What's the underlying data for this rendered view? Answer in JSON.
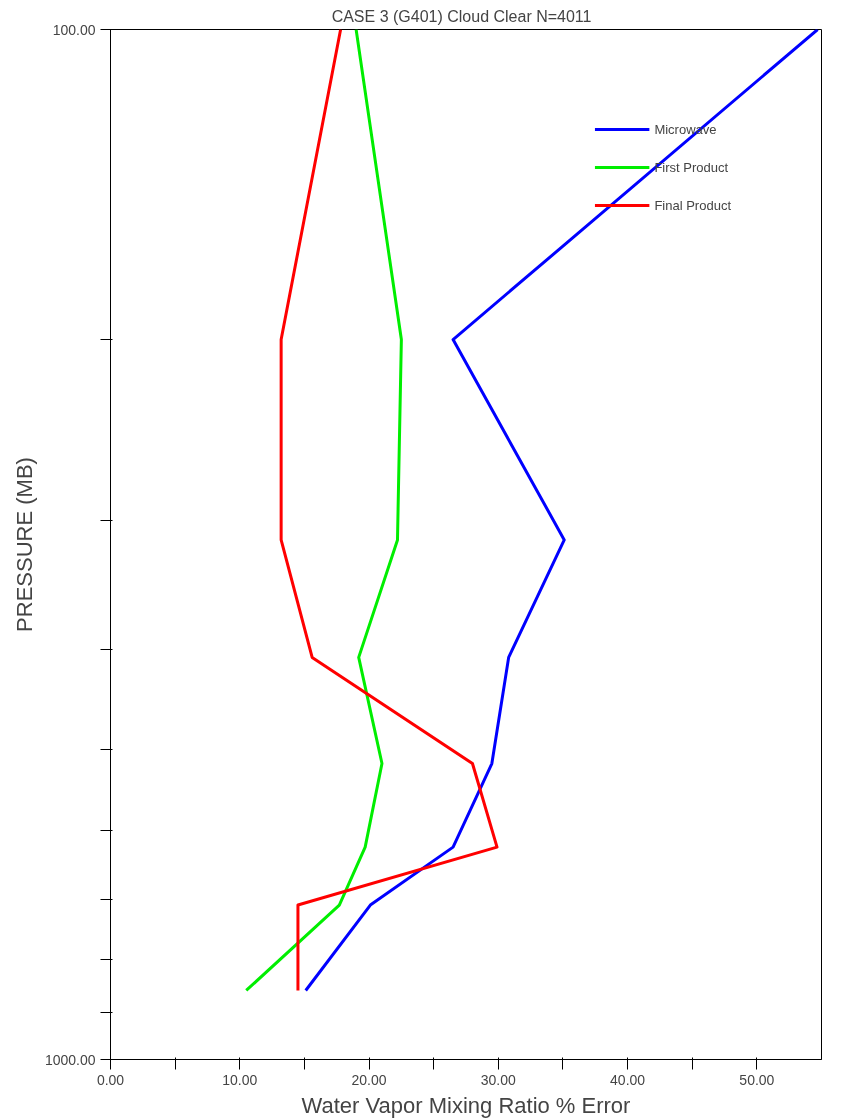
{
  "chart_data": {
    "type": "line",
    "title": "CASE 3 (G401)  Cloud Clear  N=4011",
    "xlabel": "Water Vapor Mixing Ratio % Error",
    "ylabel": "PRESSURE (MB)",
    "xlim": [
      0,
      55
    ],
    "xticks": [
      {
        "value": 0,
        "label": "0.00"
      },
      {
        "value": 5,
        "label": null
      },
      {
        "value": 10,
        "label": "10.00"
      },
      {
        "value": 15,
        "label": null
      },
      {
        "value": 20,
        "label": "20.00"
      },
      {
        "value": 25,
        "label": null
      },
      {
        "value": 30,
        "label": "30.00"
      },
      {
        "value": 35,
        "label": null
      },
      {
        "value": 40,
        "label": "40.00"
      },
      {
        "value": 45,
        "label": null
      },
      {
        "value": 50,
        "label": "50.00"
      }
    ],
    "ylim": [
      1000,
      100
    ],
    "log": "y",
    "yticks": [
      {
        "value": 100,
        "label": "100.00"
      },
      {
        "value": 200,
        "label": null
      },
      {
        "value": 300,
        "label": null
      },
      {
        "value": 400,
        "label": null
      },
      {
        "value": 500,
        "label": null
      },
      {
        "value": 600,
        "label": null
      },
      {
        "value": 700,
        "label": null
      },
      {
        "value": 800,
        "label": null
      },
      {
        "value": 900,
        "label": null
      },
      {
        "value": 1000,
        "label": "1000.00"
      }
    ],
    "legend": "top right",
    "grid": false,
    "marker": "none",
    "line_style": "solid",
    "series": [
      {
        "name": "Microwave",
        "color": "#0000ff",
        "x": [
          54.7,
          26.5,
          35.1,
          30.8,
          29.5,
          26.5,
          20.1,
          15.1
        ],
        "values": [
          100,
          200,
          313,
          407,
          516,
          622,
          708,
          857
        ]
      },
      {
        "name": "First Product",
        "color": "#00ee00",
        "x": [
          19.0,
          22.5,
          22.2,
          19.2,
          21.0,
          19.7,
          17.7,
          10.5
        ],
        "values": [
          100,
          200,
          313,
          407,
          516,
          622,
          708,
          857
        ]
      },
      {
        "name": "Final Product",
        "color": "#ff0000",
        "x": [
          17.8,
          13.2,
          13.2,
          15.6,
          28.0,
          29.9,
          14.5,
          14.5
        ],
        "values": [
          100,
          200,
          313,
          407,
          516,
          622,
          708,
          857
        ]
      }
    ]
  }
}
